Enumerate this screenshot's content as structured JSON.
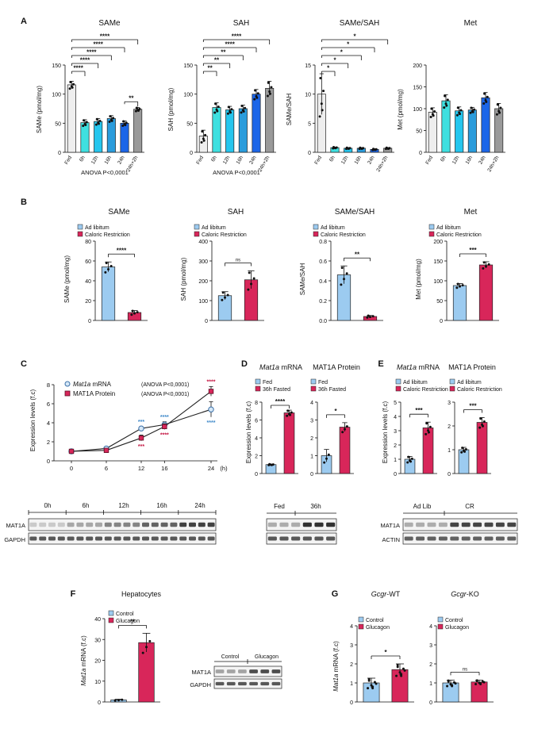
{
  "colors": {
    "fed": "#eeeeee",
    "h6": "#3fe0e0",
    "h12": "#25c6ee",
    "h16": "#2a9cdc",
    "h24": "#1c66e8",
    "refed": "#9a9a9a",
    "blue": "#9ccbf0",
    "red": "#d8265a",
    "blueMarker": "#6fa8dc",
    "blueStar": "#3a86c8",
    "redStar": "#c4123f"
  },
  "panelA": {
    "letter": "A",
    "anova": "ANOVA  P<0,0001",
    "categories": [
      "Fed",
      "6h",
      "12h",
      "16h",
      "24h",
      "24h+2h"
    ],
    "charts": [
      {
        "title": "SAMe",
        "ylabel": "SAMe (pmol/mg)",
        "ylim": [
          0,
          150
        ],
        "ticks": [
          0,
          50,
          100,
          150
        ],
        "values": [
          116,
          51,
          53,
          58,
          50,
          74
        ],
        "errors": [
          6,
          5,
          5,
          5,
          4,
          3
        ],
        "brackets": [
          {
            "label": "****",
            "to": 5
          },
          {
            "label": "****",
            "to": 4
          },
          {
            "label": "****",
            "to": 3
          },
          {
            "label": "****",
            "to": 2
          },
          {
            "label": "****",
            "to": 1
          },
          {
            "label": "**",
            "from": 4,
            "to": 5
          }
        ]
      },
      {
        "title": "SAH",
        "ylabel": "SAH (pmol/mg)",
        "ylim": [
          0,
          150
        ],
        "ticks": [
          0,
          50,
          100,
          150
        ],
        "values": [
          28,
          77,
          73,
          75,
          100,
          110
        ],
        "errors": [
          10,
          8,
          6,
          6,
          8,
          12
        ],
        "brackets": [
          {
            "label": "****",
            "to": 5
          },
          {
            "label": "****",
            "to": 4
          },
          {
            "label": "**",
            "to": 3
          },
          {
            "label": "**",
            "to": 2
          },
          {
            "label": "**",
            "to": 1
          }
        ]
      },
      {
        "title": "SAMe/SAH",
        "ylabel": "SAMe/SAH",
        "ylim": [
          0,
          15
        ],
        "ticks": [
          0,
          5,
          10,
          15
        ],
        "values": [
          10,
          0.8,
          0.7,
          0.7,
          0.5,
          0.7
        ],
        "errors": [
          3.5,
          0.1,
          0.1,
          0.1,
          0.1,
          0.1
        ],
        "brackets": [
          {
            "label": "*",
            "to": 5
          },
          {
            "label": "*",
            "to": 4
          },
          {
            "label": "*",
            "to": 3
          },
          {
            "label": "*",
            "to": 2
          },
          {
            "label": "*",
            "to": 1
          }
        ]
      },
      {
        "title": "Met",
        "ylabel": "Met (pmol/mg)",
        "ylim": [
          0,
          200
        ],
        "ticks": [
          0,
          50,
          100,
          150,
          200
        ],
        "values": [
          92,
          118,
          95,
          97,
          125,
          100
        ],
        "errors": [
          10,
          14,
          9,
          6,
          12,
          12
        ],
        "brackets": []
      }
    ]
  },
  "panelB": {
    "letter": "B",
    "legend": [
      "Ad libitum",
      "Caloric Restriction"
    ],
    "charts": [
      {
        "title": "SAMe",
        "ylabel": "SAMe (pmol/mg)",
        "ylim": [
          0,
          80
        ],
        "ticks": [
          0,
          20,
          40,
          60,
          80
        ],
        "values": [
          54,
          8
        ],
        "errors": [
          5,
          2
        ],
        "sig": "****"
      },
      {
        "title": "SAH",
        "ylabel": "SAH (pmol/mg)",
        "ylim": [
          0,
          400
        ],
        "ticks": [
          0,
          100,
          200,
          300,
          400
        ],
        "values": [
          125,
          205
        ],
        "errors": [
          20,
          45
        ],
        "sig": "ns"
      },
      {
        "title": "SAMe/SAH",
        "ylabel": "SAMe/SAH",
        "ylim": [
          0,
          0.8
        ],
        "ticks": [
          "0.0",
          "0.2",
          "0.4",
          "0.6",
          "0.8"
        ],
        "values": [
          0.46,
          0.04
        ],
        "errors": [
          0.09,
          0.01
        ],
        "sig": "**"
      },
      {
        "title": "Met",
        "ylabel": "Met (pmol/mg)",
        "ylim": [
          0,
          200
        ],
        "ticks": [
          0,
          50,
          100,
          150,
          200
        ],
        "values": [
          88,
          140
        ],
        "errors": [
          5,
          8
        ],
        "sig": "***"
      }
    ]
  },
  "panelC": {
    "letter": "C",
    "ylabel": "Expression levels (f.c)",
    "unit": "(h)",
    "x": [
      0,
      6,
      12,
      16,
      24
    ],
    "ylim": [
      0,
      8
    ],
    "ticks": [
      0,
      2,
      4,
      6,
      8
    ],
    "legend": [
      {
        "pre": "",
        "italic": "Mat1a",
        "post": " mRNA",
        "anova": "(ANOVA  P<0,0001)"
      },
      {
        "pre": "MAT1A Protein",
        "italic": "",
        "post": "",
        "anova": "(ANOVA  P<0,0001)"
      }
    ],
    "series": [
      {
        "name": "Mat1a mRNA",
        "values": [
          1,
          1.3,
          3.4,
          3.8,
          5.4
        ],
        "errors": [
          0.1,
          0.1,
          0.2,
          0.3,
          0.8
        ],
        "stars": [
          "",
          "",
          "***",
          "****",
          "****"
        ]
      },
      {
        "name": "MAT1A Protein",
        "values": [
          1,
          1.1,
          2.4,
          3.6,
          7.3
        ],
        "errors": [
          0.1,
          0.1,
          0.3,
          0.3,
          0.5
        ],
        "stars": [
          "",
          "",
          "***",
          "****",
          "****"
        ]
      }
    ],
    "blot": {
      "timepoints": [
        "0h",
        "6h",
        "12h",
        "16h",
        "24h"
      ],
      "rows": [
        "MAT1A",
        "GAPDH"
      ]
    }
  },
  "panelD": {
    "letter": "D",
    "ylabel": "Expression levels (f.c)",
    "legend": [
      "Fed",
      "36h Fasted"
    ],
    "charts": [
      {
        "title_italic": "Mat1a",
        "title_rest": " mRNA",
        "ylim": [
          0,
          8
        ],
        "ticks": [
          0,
          2,
          4,
          6,
          8
        ],
        "values": [
          1,
          6.8
        ],
        "errors": [
          0.05,
          0.3
        ],
        "sig": "****"
      },
      {
        "title_italic": "",
        "title_rest": "MAT1A Protein",
        "ylim": [
          0,
          4
        ],
        "ticks": [
          0,
          1,
          2,
          3,
          4
        ],
        "values": [
          1,
          2.6
        ],
        "errors": [
          0.35,
          0.25
        ],
        "sig": "*"
      }
    ],
    "blot": {
      "groups": [
        "Fed",
        "36h"
      ]
    }
  },
  "panelE": {
    "letter": "E",
    "ylabel": "Expression levels (f.c)",
    "legend": [
      "Ad libitum",
      "Caloric Restriction"
    ],
    "charts": [
      {
        "title_italic": "Mat1a",
        "title_rest": " mRNA",
        "ylim": [
          0,
          5
        ],
        "ticks": [
          0,
          1,
          2,
          3,
          4,
          5
        ],
        "values": [
          1,
          3.2
        ],
        "errors": [
          0.2,
          0.4
        ],
        "sig": "***"
      },
      {
        "title_italic": "",
        "title_rest": "MAT1A Protein",
        "ylim": [
          0,
          3
        ],
        "ticks": [
          0,
          1,
          2,
          3
        ],
        "values": [
          1,
          2.15
        ],
        "errors": [
          0.1,
          0.2
        ],
        "sig": "***"
      }
    ],
    "blot": {
      "groups": [
        "Ad Lib",
        "CR"
      ],
      "rows": [
        "MAT1A",
        "ACTIN"
      ]
    }
  },
  "panelF": {
    "letter": "F",
    "title": "Hepatocytes",
    "legend": [
      "Control",
      "Glucagon"
    ],
    "ylabel_italic": "Mat1a",
    "ylabel_rest": " mRNA (f.c)",
    "ylim": [
      0,
      40
    ],
    "ticks": [
      0,
      10,
      20,
      30,
      40
    ],
    "values": [
      1,
      28.5
    ],
    "errors": [
      0.3,
      4.5
    ],
    "sig": "**",
    "blot": {
      "groups": [
        "Control",
        "Glucagon"
      ],
      "rows": [
        "MAT1A",
        "GAPDH"
      ]
    }
  },
  "panelG": {
    "letter": "G",
    "legend": [
      "Control",
      "Glucagon"
    ],
    "ylabel_italic": "Mat1a",
    "ylabel_rest": " mRNA (f.c)",
    "charts": [
      {
        "title_italic": "Gcgr",
        "title_rest": "-WT",
        "ylim": [
          0,
          4
        ],
        "ticks": [
          0,
          1,
          2,
          3,
          4
        ],
        "values": [
          1,
          1.7
        ],
        "errors": [
          0.25,
          0.3
        ],
        "sig": "*"
      },
      {
        "title_italic": "Gcgr",
        "title_rest": "-KO",
        "ylim": [
          0,
          4
        ],
        "ticks": [
          0,
          1,
          2,
          3,
          4
        ],
        "values": [
          1,
          1.05
        ],
        "errors": [
          0.15,
          0.1
        ],
        "sig": "ns"
      }
    ]
  },
  "chart_data": [
    {
      "type": "bar",
      "title": "SAMe",
      "categories": [
        "Fed",
        "6h",
        "12h",
        "16h",
        "24h",
        "24h+2h"
      ],
      "values": [
        116,
        51,
        53,
        58,
        50,
        74
      ],
      "ylabel": "SAMe (pmol/mg)",
      "ylim": [
        0,
        150
      ]
    },
    {
      "type": "bar",
      "title": "SAH",
      "categories": [
        "Fed",
        "6h",
        "12h",
        "16h",
        "24h",
        "24h+2h"
      ],
      "values": [
        28,
        77,
        73,
        75,
        100,
        110
      ],
      "ylabel": "SAH (pmol/mg)",
      "ylim": [
        0,
        150
      ]
    },
    {
      "type": "bar",
      "title": "SAMe/SAH",
      "categories": [
        "Fed",
        "6h",
        "12h",
        "16h",
        "24h",
        "24h+2h"
      ],
      "values": [
        10,
        0.8,
        0.7,
        0.7,
        0.5,
        0.7
      ],
      "ylabel": "SAMe/SAH",
      "ylim": [
        0,
        15
      ]
    },
    {
      "type": "bar",
      "title": "Met",
      "categories": [
        "Fed",
        "6h",
        "12h",
        "16h",
        "24h",
        "24h+2h"
      ],
      "values": [
        92,
        118,
        95,
        97,
        125,
        100
      ],
      "ylabel": "Met (pmol/mg)",
      "ylim": [
        0,
        200
      ]
    },
    {
      "type": "bar",
      "title": "SAMe",
      "categories": [
        "Ad libitum",
        "Caloric Restriction"
      ],
      "values": [
        54,
        8
      ],
      "ylim": [
        0,
        80
      ]
    },
    {
      "type": "bar",
      "title": "SAH",
      "categories": [
        "Ad libitum",
        "Caloric Restriction"
      ],
      "values": [
        125,
        205
      ],
      "ylim": [
        0,
        400
      ]
    },
    {
      "type": "bar",
      "title": "SAMe/SAH",
      "categories": [
        "Ad libitum",
        "Caloric Restriction"
      ],
      "values": [
        0.46,
        0.04
      ],
      "ylim": [
        0,
        0.8
      ]
    },
    {
      "type": "bar",
      "title": "Met",
      "categories": [
        "Ad libitum",
        "Caloric Restriction"
      ],
      "values": [
        88,
        140
      ],
      "ylim": [
        0,
        200
      ]
    },
    {
      "type": "line",
      "title": "C",
      "x": [
        0,
        6,
        12,
        16,
        24
      ],
      "series": [
        {
          "name": "Mat1a mRNA",
          "values": [
            1,
            1.3,
            3.4,
            3.8,
            5.4
          ]
        },
        {
          "name": "MAT1A Protein",
          "values": [
            1,
            1.1,
            2.4,
            3.6,
            7.3
          ]
        }
      ],
      "ylabel": "Expression levels (f.c)",
      "ylim": [
        0,
        8
      ]
    },
    {
      "type": "bar",
      "title": "Mat1a mRNA (D)",
      "categories": [
        "Fed",
        "36h Fasted"
      ],
      "values": [
        1,
        6.8
      ],
      "ylim": [
        0,
        8
      ]
    },
    {
      "type": "bar",
      "title": "MAT1A Protein (D)",
      "categories": [
        "Fed",
        "36h Fasted"
      ],
      "values": [
        1,
        2.6
      ],
      "ylim": [
        0,
        4
      ]
    },
    {
      "type": "bar",
      "title": "Mat1a mRNA (E)",
      "categories": [
        "Ad libitum",
        "Caloric Restriction"
      ],
      "values": [
        1,
        3.2
      ],
      "ylim": [
        0,
        5
      ]
    },
    {
      "type": "bar",
      "title": "MAT1A Protein (E)",
      "categories": [
        "Ad libitum",
        "Caloric Restriction"
      ],
      "values": [
        1,
        2.15
      ],
      "ylim": [
        0,
        3
      ]
    },
    {
      "type": "bar",
      "title": "Hepatocytes",
      "categories": [
        "Control",
        "Glucagon"
      ],
      "values": [
        1,
        28.5
      ],
      "ylim": [
        0,
        40
      ]
    },
    {
      "type": "bar",
      "title": "Gcgr-WT",
      "categories": [
        "Control",
        "Glucagon"
      ],
      "values": [
        1,
        1.7
      ],
      "ylim": [
        0,
        4
      ]
    },
    {
      "type": "bar",
      "title": "Gcgr-KO",
      "categories": [
        "Control",
        "Glucagon"
      ],
      "values": [
        1,
        1.05
      ],
      "ylim": [
        0,
        4
      ]
    }
  ]
}
